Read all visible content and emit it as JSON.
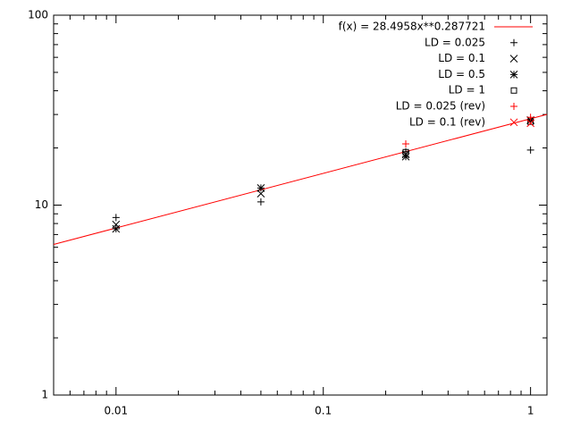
{
  "chart_data": {
    "type": "scatter",
    "xscale": "log",
    "yscale": "log",
    "xlim": [
      0.005,
      1.2
    ],
    "ylim": [
      1,
      100
    ],
    "xticks": [
      0.01,
      0.1,
      1
    ],
    "yticks": [
      1,
      10,
      100
    ],
    "legend": "top-right",
    "series": [
      {
        "name": "f(x) = 28.4958x**0.287721",
        "color": "#ff0000",
        "style": "line",
        "x": [
          0.005,
          1.2
        ],
        "values": [
          6.21,
          30.03
        ]
      },
      {
        "name": "LD = 0.025",
        "color": "#000000",
        "marker": "plus",
        "x": [
          0.01,
          0.05,
          0.25,
          1
        ],
        "values": [
          8.6,
          10.4,
          19.1,
          19.5
        ]
      },
      {
        "name": "LD = 0.1",
        "color": "#000000",
        "marker": "cross",
        "x": [
          0.01,
          0.05,
          0.25,
          1
        ],
        "values": [
          7.9,
          11.5,
          18.5,
          28
        ]
      },
      {
        "name": "LD = 0.5",
        "color": "#000000",
        "marker": "star",
        "x": [
          0.01,
          0.05,
          0.25,
          1
        ],
        "values": [
          7.5,
          12.3,
          18,
          28
        ]
      },
      {
        "name": "LD = 1",
        "color": "#000000",
        "marker": "square",
        "x": [
          0.25,
          1
        ],
        "values": [
          19,
          27.5
        ]
      },
      {
        "name": "LD = 0.025 (rev)",
        "color": "#ff0000",
        "marker": "plus",
        "x": [
          0.25,
          1
        ],
        "values": [
          21,
          29
        ]
      },
      {
        "name": "LD = 0.1 (rev)",
        "color": "#ff0000",
        "marker": "cross",
        "x": [
          1
        ],
        "values": [
          27
        ]
      }
    ]
  }
}
